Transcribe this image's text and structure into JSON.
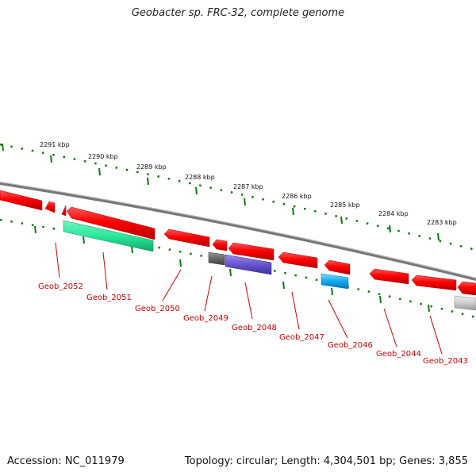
{
  "title": "Geobacter sp. FRC-32, complete genome",
  "footer": {
    "accession": "Accession: NC_011979",
    "topology": "Topology: circular; Length: 4,304,501 bp; Genes: 3,855"
  },
  "kbp_ticks": [
    "2291 kbp",
    "2290 kbp",
    "2289 kbp",
    "2288 kbp",
    "2287 kbp",
    "2286 kbp",
    "2285 kbp",
    "2284 kbp",
    "2283 kbp"
  ],
  "gene_labels": [
    "Geob_2052",
    "Geob_2051",
    "Geob_2050",
    "Geob_2049",
    "Geob_2048",
    "Geob_2047",
    "Geob_2046",
    "Geob_2044",
    "Geob_2043"
  ],
  "colors": {
    "cds": "#ff0000",
    "rna_green": "#33ee99",
    "rna_purple": "#6655cc",
    "rna_cyan": "#11aaee",
    "grey": "#666666",
    "light_grey": "#cccccc",
    "tick": "#117711",
    "backbone": "#777777"
  }
}
